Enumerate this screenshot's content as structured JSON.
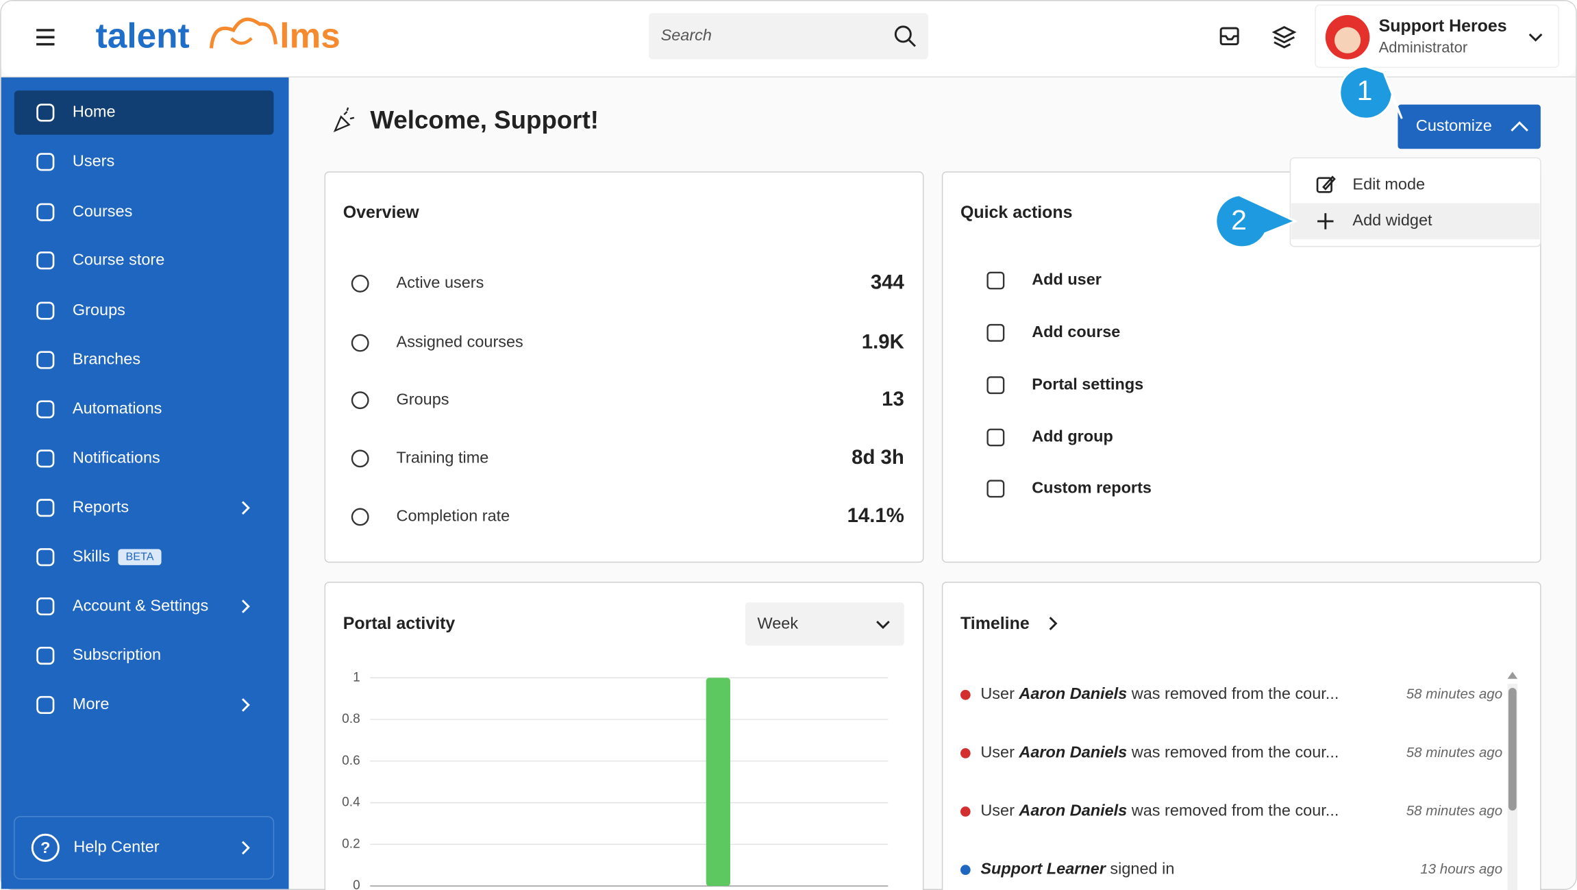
{
  "header": {
    "logo_left": "talent",
    "logo_right": "lms",
    "search_placeholder": "Search",
    "user_name": "Support Heroes",
    "user_role": "Administrator"
  },
  "sidebar": {
    "items": [
      "Home",
      "Users",
      "Courses",
      "Course store",
      "Groups",
      "Branches",
      "Automations",
      "Notifications",
      "Reports",
      "Skills",
      "Account & Settings",
      "Subscription",
      "More"
    ],
    "active": "Home",
    "beta_badge": "BETA",
    "help": "Help Center"
  },
  "welcome": "Welcome, Support!",
  "customize": {
    "button": "Customize",
    "menu": [
      "Edit mode",
      "Add widget"
    ]
  },
  "callouts": [
    "1",
    "2"
  ],
  "overview": {
    "title": "Overview",
    "rows": [
      {
        "label": "Active users",
        "value": 344
      },
      {
        "label": "Assigned courses",
        "value": "1.9K"
      },
      {
        "label": "Groups",
        "value": 13
      },
      {
        "label": "Training time",
        "value": "8d 3h"
      },
      {
        "label": "Completion rate",
        "value": "14.1%"
      }
    ]
  },
  "quick_actions": {
    "title": "Quick actions",
    "items": [
      "Add user",
      "Add course",
      "Portal settings",
      "Add group",
      "Custom reports"
    ]
  },
  "portal_activity": {
    "title": "Portal activity",
    "period": "Week",
    "chart_data": {
      "type": "bar",
      "values": [
        0,
        0,
        0,
        0,
        1,
        0,
        0
      ],
      "color": "#5cc85f",
      "ylim": [
        0,
        1
      ],
      "yticks": [
        0,
        0.2,
        0.4,
        0.6,
        0.8,
        1
      ],
      "grid": true
    }
  },
  "timeline": {
    "title": "Timeline",
    "items": [
      {
        "prefix": "User ",
        "name": "Aaron Daniels",
        "rest": " was removed from the cour...",
        "time": "58 minutes ago",
        "color": "#d32f2f"
      },
      {
        "prefix": "User ",
        "name": "Aaron Daniels",
        "rest": " was removed from the cour...",
        "time": "58 minutes ago",
        "color": "#d32f2f"
      },
      {
        "prefix": "User ",
        "name": "Aaron Daniels",
        "rest": " was removed from the cour...",
        "time": "58 minutes ago",
        "color": "#d32f2f"
      },
      {
        "name": "Support Learner",
        "rest": " signed in",
        "time": "13 hours ago",
        "color": "#1f66c0"
      }
    ]
  }
}
